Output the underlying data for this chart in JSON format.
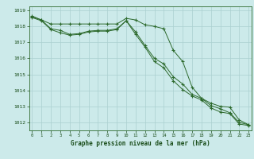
{
  "hours": [
    0,
    1,
    2,
    3,
    4,
    5,
    6,
    7,
    8,
    9,
    10,
    11,
    12,
    13,
    14,
    15,
    16,
    17,
    18,
    19,
    20,
    21,
    22,
    23
  ],
  "line1": [
    1018.6,
    1018.4,
    1017.85,
    1017.75,
    1017.5,
    1017.55,
    1017.7,
    1017.75,
    1017.75,
    1017.85,
    1018.35,
    1017.65,
    1016.8,
    1016.0,
    1015.65,
    1014.85,
    1014.4,
    1013.75,
    1013.5,
    1013.05,
    1012.85,
    1012.6,
    1012.0,
    1011.85
  ],
  "line2": [
    1018.55,
    1018.35,
    1017.8,
    1017.6,
    1017.45,
    1017.5,
    1017.65,
    1017.7,
    1017.7,
    1017.8,
    1018.35,
    1017.5,
    1016.7,
    1015.8,
    1015.4,
    1014.6,
    1014.05,
    1013.65,
    1013.4,
    1012.9,
    1012.65,
    1012.55,
    1011.9,
    1011.8
  ],
  "line3": [
    1018.65,
    1018.4,
    1018.15,
    1018.15,
    1018.15,
    1018.15,
    1018.15,
    1018.15,
    1018.15,
    1018.15,
    1018.5,
    1018.4,
    1018.1,
    1018.0,
    1017.85,
    1016.5,
    1015.8,
    1014.2,
    1013.5,
    1013.2,
    1013.0,
    1012.95,
    1012.15,
    1011.85
  ],
  "ylim_min": 1011.5,
  "ylim_max": 1019.25,
  "yticks": [
    1012,
    1013,
    1014,
    1015,
    1016,
    1017,
    1018,
    1019
  ],
  "line_color": "#2d6a2d",
  "bg_color": "#cceaea",
  "grid_color": "#aad0d0",
  "xlabel": "Graphe pression niveau de la mer (hPa)",
  "xlabel_color": "#1a4d1a",
  "tick_color": "#1a4d1a"
}
